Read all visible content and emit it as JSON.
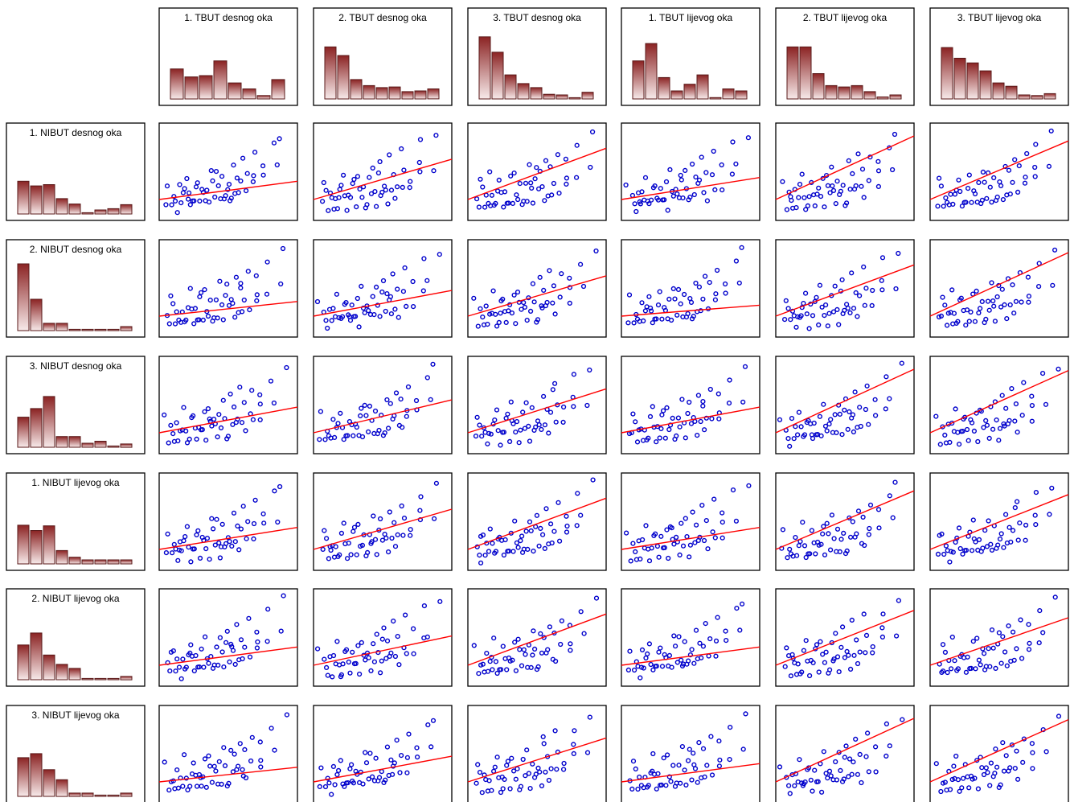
{
  "chart_data": {
    "type": "scatter",
    "subtype": "scatterplot-matrix",
    "column_variables": [
      "1. TBUT desnog oka",
      "2. TBUT desnog oka",
      "3. TBUT desnog oka",
      "1. TBUT lijevog oka",
      "2. TBUT lijevog oka",
      "3. TBUT lijevog oka"
    ],
    "row_variables": [
      "1. NIBUT desnog oka",
      "2. NIBUT desnog oka",
      "3. NIBUT desnog oka",
      "1. NIBUT lijevog oka",
      "2. NIBUT lijevog oka",
      "3. NIBUT lijevog oka"
    ],
    "histograms": {
      "columns": [
        [
          0.45,
          0.33,
          0.35,
          0.57,
          0.24,
          0.15,
          0.05,
          0.29
        ],
        [
          0.78,
          0.65,
          0.29,
          0.2,
          0.17,
          0.18,
          0.11,
          0.12,
          0.15
        ],
        [
          0.93,
          0.7,
          0.36,
          0.23,
          0.17,
          0.07,
          0.06,
          0.0,
          0.1
        ],
        [
          0.57,
          0.83,
          0.32,
          0.12,
          0.22,
          0.36,
          0.02,
          0.15,
          0.12
        ],
        [
          0.78,
          0.78,
          0.38,
          0.2,
          0.18,
          0.2,
          0.11,
          0.03,
          0.06
        ],
        [
          0.77,
          0.61,
          0.54,
          0.42,
          0.24,
          0.19,
          0.06,
          0.05,
          0.08
        ]
      ],
      "rows": [
        [
          0.49,
          0.42,
          0.44,
          0.23,
          0.15,
          0.01,
          0.06,
          0.08,
          0.14
        ],
        [
          1.0,
          0.47,
          0.11,
          0.11,
          0.01,
          0.01,
          0.01,
          0.01,
          0.06
        ],
        [
          0.45,
          0.58,
          0.76,
          0.16,
          0.16,
          0.06,
          0.09,
          0.0,
          0.05
        ],
        [
          0.58,
          0.5,
          0.57,
          0.2,
          0.1,
          0.06,
          0.06,
          0.06,
          0.06
        ],
        [
          0.52,
          0.7,
          0.37,
          0.23,
          0.17,
          0.0,
          0.0,
          0.0,
          0.05
        ],
        [
          0.58,
          0.64,
          0.4,
          0.25,
          0.05,
          0.05,
          0.0,
          0.0,
          0.05
        ]
      ]
    },
    "scatter_points": [
      [
        15,
        40
      ],
      [
        18,
        14
      ],
      [
        20,
        22
      ],
      [
        22,
        9
      ],
      [
        24,
        32
      ],
      [
        26,
        6
      ],
      [
        28,
        18
      ],
      [
        30,
        26
      ],
      [
        32,
        11
      ],
      [
        34,
        21
      ],
      [
        36,
        48
      ],
      [
        38,
        33
      ],
      [
        40,
        15
      ],
      [
        42,
        8
      ],
      [
        44,
        24
      ],
      [
        46,
        37
      ],
      [
        48,
        17
      ],
      [
        50,
        29
      ],
      [
        52,
        12
      ],
      [
        54,
        44
      ],
      [
        56,
        19
      ],
      [
        58,
        27
      ],
      [
        60,
        52
      ],
      [
        62,
        10
      ],
      [
        64,
        34
      ],
      [
        66,
        23
      ],
      [
        68,
        41
      ],
      [
        70,
        16
      ],
      [
        72,
        30
      ],
      [
        74,
        57
      ],
      [
        76,
        20
      ],
      [
        78,
        46
      ],
      [
        80,
        13
      ],
      [
        82,
        36
      ],
      [
        84,
        26
      ],
      [
        86,
        62
      ],
      [
        88,
        18
      ],
      [
        90,
        33
      ],
      [
        92,
        50
      ],
      [
        94,
        28
      ],
      [
        96,
        70
      ],
      [
        98,
        39
      ],
      [
        100,
        22
      ],
      [
        103,
        55
      ],
      [
        106,
        31
      ],
      [
        109,
        77
      ],
      [
        112,
        45
      ],
      [
        116,
        35
      ],
      [
        120,
        64
      ],
      [
        125,
        50
      ],
      [
        130,
        88
      ],
      [
        138,
        58
      ],
      [
        145,
        100
      ]
    ],
    "regression_slopes": [
      [
        0.25,
        0.55,
        0.7,
        0.3,
        0.95,
        0.8
      ],
      [
        0.2,
        0.35,
        0.55,
        0.15,
        0.7,
        0.9
      ],
      [
        0.35,
        0.45,
        0.6,
        0.35,
        0.9,
        0.85
      ],
      [
        0.3,
        0.55,
        0.7,
        0.3,
        0.8,
        0.75
      ],
      [
        0.25,
        0.4,
        0.7,
        0.25,
        0.75,
        0.65
      ],
      [
        0.2,
        0.35,
        0.6,
        0.25,
        0.9,
        0.85
      ]
    ],
    "series": [
      {
        "values": "scatter_points",
        "kind": "points"
      },
      {
        "values": "regression_slopes",
        "kind": "regression-line"
      }
    ],
    "colors": {
      "point": "#0000cc",
      "regression": "#ff0000",
      "bar_fill_top": "#8b2323",
      "bar_fill_bottom": "#f7eaea",
      "bar_stroke": "#5a1a1a",
      "panel_border": "#000000"
    },
    "grid": false,
    "legend": "none"
  }
}
